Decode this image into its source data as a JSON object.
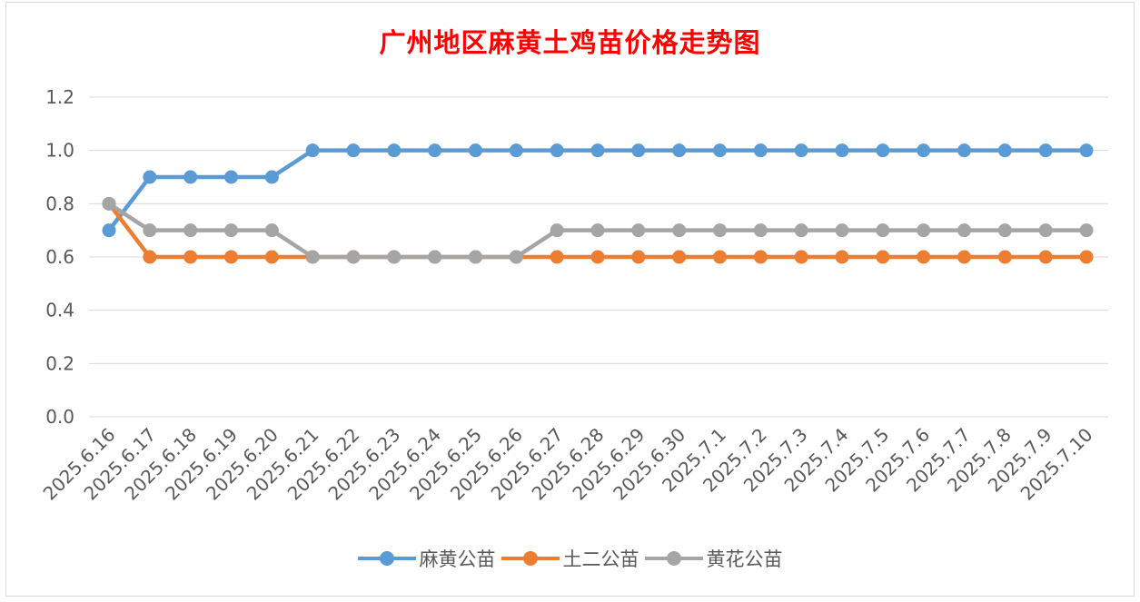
{
  "chart_data": {
    "type": "line",
    "title": "广州地区麻黄土鸡苗价格走势图",
    "xlabel": "",
    "ylabel": "",
    "ylim": [
      0,
      1.2
    ],
    "yticks": [
      "0.0",
      "0.2",
      "0.4",
      "0.6",
      "0.8",
      "1.0",
      "1.2"
    ],
    "grid": true,
    "legend_position": "bottom",
    "categories": [
      "2025.6.16",
      "2025.6.17",
      "2025.6.18",
      "2025.6.19",
      "2025.6.20",
      "2025.6.21",
      "2025.6.22",
      "2025.6.23",
      "2025.6.24",
      "2025.6.25",
      "2025.6.26",
      "2025.6.27",
      "2025.6.28",
      "2025.6.29",
      "2025.6.30",
      "2025.7.1",
      "2025.7.2",
      "2025.7.3",
      "2025.7.4",
      "2025.7.5",
      "2025.7.6",
      "2025.7.7",
      "2025.7.8",
      "2025.7.9",
      "2025.7.10"
    ],
    "series": [
      {
        "name": "麻黄公苗",
        "color": "#5b9bd5",
        "values": [
          0.7,
          0.9,
          0.9,
          0.9,
          0.9,
          1.0,
          1.0,
          1.0,
          1.0,
          1.0,
          1.0,
          1.0,
          1.0,
          1.0,
          1.0,
          1.0,
          1.0,
          1.0,
          1.0,
          1.0,
          1.0,
          1.0,
          1.0,
          1.0,
          1.0
        ]
      },
      {
        "name": "土二公苗",
        "color": "#ed7d31",
        "values": [
          0.8,
          0.6,
          0.6,
          0.6,
          0.6,
          0.6,
          0.6,
          0.6,
          0.6,
          0.6,
          0.6,
          0.6,
          0.6,
          0.6,
          0.6,
          0.6,
          0.6,
          0.6,
          0.6,
          0.6,
          0.6,
          0.6,
          0.6,
          0.6,
          0.6
        ]
      },
      {
        "name": "黄花公苗",
        "color": "#a5a5a5",
        "values": [
          0.8,
          0.7,
          0.7,
          0.7,
          0.7,
          0.6,
          0.6,
          0.6,
          0.6,
          0.6,
          0.6,
          0.7,
          0.7,
          0.7,
          0.7,
          0.7,
          0.7,
          0.7,
          0.7,
          0.7,
          0.7,
          0.7,
          0.7,
          0.7,
          0.7
        ]
      }
    ]
  }
}
